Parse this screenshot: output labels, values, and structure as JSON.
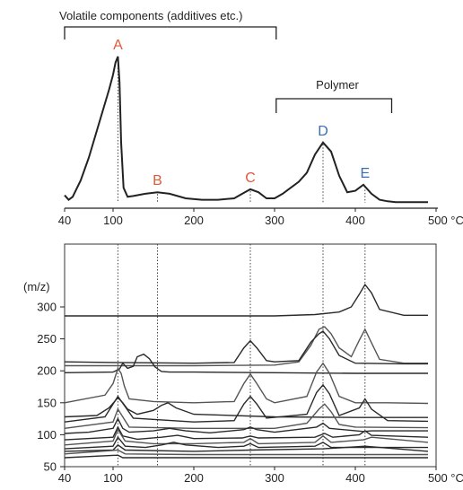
{
  "chart_data": [
    {
      "type": "line",
      "title": "",
      "xlabel": "",
      "ylabel": "",
      "x_unit": "°C",
      "x_ticks": [
        40,
        100,
        200,
        300,
        400,
        500
      ],
      "x_tick_labels": [
        "40",
        "100",
        "200",
        "300",
        "400",
        "500 °C"
      ],
      "xlim": [
        40,
        500
      ],
      "ylim": [
        0,
        1
      ],
      "brackets": [
        {
          "label": "Volatile components (additives etc.)",
          "x_start": 40,
          "x_end": 302
        },
        {
          "label": "Polymer",
          "x_start": 302,
          "x_end": 445
        }
      ],
      "peaks": [
        {
          "label": "A",
          "x": 106,
          "y": 0.97,
          "color": "#e05a3a"
        },
        {
          "label": "B",
          "x": 155,
          "y": 0.07,
          "color": "#e05a3a"
        },
        {
          "label": "C",
          "x": 270,
          "y": 0.09,
          "color": "#e05a3a"
        },
        {
          "label": "D",
          "x": 360,
          "y": 0.4,
          "color": "#3a6db5"
        },
        {
          "label": "E",
          "x": 412,
          "y": 0.12,
          "color": "#3a6db5"
        }
      ],
      "series": [
        {
          "x": [
            40,
            45,
            50,
            60,
            70,
            80,
            90,
            95,
            100,
            103,
            106,
            108,
            110,
            113,
            118,
            125,
            140,
            155,
            170,
            190,
            210,
            230,
            250,
            260,
            270,
            280,
            290,
            300,
            310,
            320,
            330,
            340,
            350,
            360,
            370,
            380,
            390,
            400,
            410,
            420,
            430,
            440,
            450,
            470,
            490
          ],
          "y": [
            0.05,
            0.02,
            0.04,
            0.15,
            0.3,
            0.48,
            0.66,
            0.75,
            0.85,
            0.93,
            0.97,
            0.8,
            0.4,
            0.1,
            0.04,
            0.045,
            0.06,
            0.07,
            0.06,
            0.03,
            0.02,
            0.02,
            0.03,
            0.06,
            0.09,
            0.07,
            0.03,
            0.03,
            0.06,
            0.1,
            0.14,
            0.2,
            0.32,
            0.4,
            0.34,
            0.18,
            0.07,
            0.08,
            0.12,
            0.06,
            0.02,
            0.01,
            0.005,
            0.005,
            0.005
          ]
        }
      ]
    },
    {
      "type": "line",
      "title": "",
      "xlabel": "",
      "ylabel": "(m/z)",
      "x_unit": "°C",
      "x_ticks": [
        40,
        100,
        200,
        300,
        400,
        500
      ],
      "x_tick_labels": [
        "40",
        "100",
        "200",
        "300",
        "400",
        "500 °C"
      ],
      "xlim": [
        40,
        500
      ],
      "y_ticks": [
        50,
        100,
        150,
        200,
        250,
        300
      ],
      "ylim": [
        50,
        360
      ],
      "series": [
        {
          "x": [
            40,
            80,
            100,
            105,
            108,
            112,
            120,
            200,
            300,
            350,
            380,
            395,
            405,
            412,
            420,
            430,
            460,
            490
          ],
          "y": [
            286,
            286,
            286,
            286,
            286,
            286,
            286,
            286,
            286,
            288,
            292,
            300,
            320,
            335,
            322,
            296,
            287,
            287
          ]
        },
        {
          "x": [
            40,
            200,
            300,
            330,
            345,
            355,
            362,
            370,
            380,
            395,
            405,
            412,
            420,
            430,
            460,
            490
          ],
          "y": [
            208,
            208,
            209,
            214,
            240,
            265,
            269,
            258,
            236,
            222,
            248,
            265,
            244,
            218,
            212,
            212
          ]
        },
        {
          "x": [
            40,
            100,
            200,
            250,
            262,
            270,
            278,
            290,
            300,
            330,
            345,
            355,
            360,
            368,
            380,
            400,
            460,
            490
          ],
          "y": [
            214,
            213,
            212,
            213,
            236,
            247,
            236,
            216,
            214,
            216,
            245,
            258,
            262,
            250,
            224,
            212,
            211,
            211
          ]
        },
        {
          "x": [
            40,
            100,
            108,
            112,
            118,
            125,
            130,
            138,
            145,
            152,
            160,
            170,
            200,
            300,
            400,
            490
          ],
          "y": [
            197,
            198,
            203,
            212,
            204,
            207,
            222,
            226,
            219,
            206,
            199,
            198,
            198,
            197,
            196,
            196
          ]
        },
        {
          "x": [
            40,
            90,
            100,
            106,
            110,
            114,
            120,
            150,
            200,
            250,
            262,
            270,
            278,
            290,
            300,
            340,
            352,
            360,
            368,
            380,
            400,
            440,
            490
          ],
          "y": [
            150,
            162,
            180,
            204,
            196,
            176,
            156,
            152,
            150,
            152,
            180,
            195,
            180,
            156,
            150,
            160,
            198,
            212,
            196,
            160,
            150,
            150,
            149
          ]
        },
        {
          "x": [
            40,
            80,
            95,
            106,
            112,
            118,
            130,
            150,
            160,
            168,
            178,
            200,
            300,
            400,
            490
          ],
          "y": [
            128,
            130,
            142,
            158,
            150,
            140,
            132,
            138,
            146,
            150,
            142,
            132,
            128,
            127,
            127
          ]
        },
        {
          "x": [
            40,
            90,
            106,
            115,
            125,
            200,
            250,
            262,
            270,
            278,
            290,
            340,
            352,
            360,
            368,
            380,
            405,
            412,
            420,
            440,
            490
          ],
          "y": [
            120,
            128,
            160,
            144,
            126,
            120,
            122,
            148,
            160,
            148,
            126,
            132,
            166,
            178,
            164,
            130,
            142,
            156,
            140,
            122,
            121
          ]
        },
        {
          "x": [
            40,
            100,
            106,
            112,
            120,
            200,
            300,
            340,
            355,
            362,
            370,
            380,
            400,
            490
          ],
          "y": [
            110,
            120,
            140,
            128,
            112,
            110,
            110,
            118,
            140,
            148,
            136,
            116,
            112,
            111
          ]
        },
        {
          "x": [
            40,
            70,
            100,
            106,
            112,
            120,
            150,
            170,
            190,
            220,
            262,
            270,
            278,
            300,
            352,
            360,
            368,
            410,
            420,
            490
          ],
          "y": [
            102,
            104,
            110,
            125,
            110,
            104,
            106,
            110,
            106,
            103,
            108,
            112,
            108,
            104,
            112,
            118,
            110,
            105,
            106,
            106
          ]
        },
        {
          "x": [
            40,
            100,
            106,
            112,
            130,
            160,
            180,
            200,
            260,
            270,
            280,
            350,
            362,
            372,
            405,
            412,
            420,
            490
          ],
          "y": [
            92,
            96,
            112,
            98,
            93,
            96,
            99,
            94,
            95,
            98,
            95,
            96,
            102,
            96,
            100,
            106,
            99,
            96
          ]
        },
        {
          "x": [
            40,
            100,
            106,
            115,
            150,
            200,
            262,
            270,
            280,
            350,
            360,
            370,
            410,
            420,
            490
          ],
          "y": [
            84,
            90,
            108,
            90,
            86,
            86,
            88,
            94,
            86,
            88,
            98,
            88,
            92,
            96,
            88
          ]
        },
        {
          "x": [
            40,
            100,
            106,
            115,
            140,
            160,
            175,
            190,
            230,
            262,
            270,
            280,
            350,
            360,
            370,
            490
          ],
          "y": [
            78,
            82,
            96,
            82,
            80,
            84,
            88,
            84,
            80,
            82,
            86,
            80,
            82,
            88,
            80,
            80
          ]
        },
        {
          "x": [
            40,
            100,
            106,
            115,
            200,
            270,
            360,
            412,
            490
          ],
          "y": [
            74,
            76,
            84,
            76,
            74,
            76,
            78,
            82,
            74
          ]
        },
        {
          "x": [
            40,
            106,
            115,
            200,
            300,
            400,
            490
          ],
          "y": [
            70,
            76,
            70,
            69,
            69,
            69,
            69
          ]
        },
        {
          "x": [
            40,
            106,
            112,
            200,
            300,
            400,
            490
          ],
          "y": [
            64,
            68,
            64,
            64,
            64,
            64,
            64
          ]
        }
      ],
      "peak_markers": [
        {
          "label": "A",
          "x": 106
        },
        {
          "label": "B",
          "x": 155
        },
        {
          "label": "C",
          "x": 270
        },
        {
          "label": "D",
          "x": 360
        },
        {
          "label": "E",
          "x": 412
        }
      ]
    }
  ]
}
